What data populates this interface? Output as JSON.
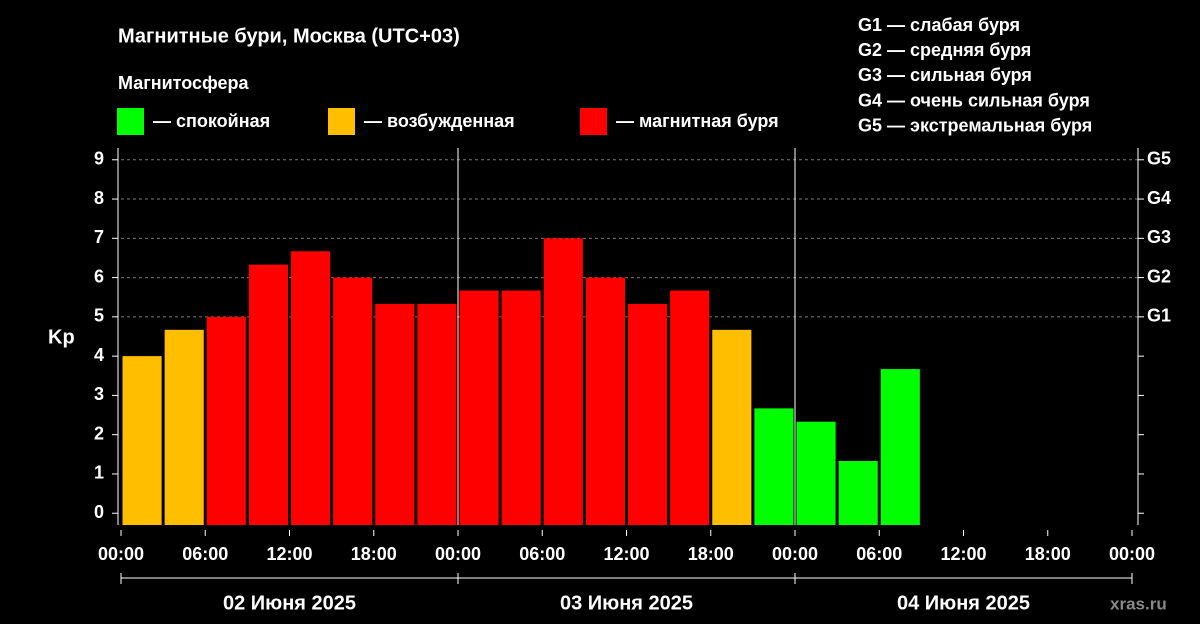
{
  "chart_data": {
    "type": "bar",
    "title": "Магнитные бури, Москва (UTC+03)",
    "legend_title": "Магнитосфера",
    "y_label": "Kp",
    "watermark": "xras.ru",
    "x": [
      0,
      3,
      6,
      9,
      12,
      15,
      18,
      21,
      24,
      27,
      30,
      33,
      36,
      39,
      42,
      45,
      48,
      51,
      54
    ],
    "series": [
      {
        "name": "— спокойная",
        "color": "#00ff00",
        "values": [
          null,
          null,
          null,
          null,
          null,
          null,
          null,
          null,
          null,
          null,
          null,
          null,
          null,
          null,
          null,
          2.67,
          2.33,
          1.33,
          3.67
        ]
      },
      {
        "name": "— возбужденная",
        "color": "#ffbf00",
        "values": [
          4.0,
          4.67,
          null,
          null,
          null,
          null,
          null,
          null,
          null,
          null,
          null,
          null,
          null,
          null,
          4.67,
          null,
          null,
          null,
          null
        ]
      },
      {
        "name": "— магнитная буря",
        "color": "#ff0000",
        "values": [
          null,
          null,
          5.0,
          6.33,
          6.67,
          6.0,
          5.33,
          5.33,
          5.67,
          5.67,
          7.0,
          6.0,
          5.33,
          5.67,
          null,
          null,
          null,
          null,
          null
        ]
      }
    ],
    "xlim": [
      0,
      72
    ],
    "xticks": [
      {
        "value": 0,
        "label": "00:00"
      },
      {
        "value": 6,
        "label": "06:00"
      },
      {
        "value": 12,
        "label": "12:00"
      },
      {
        "value": 18,
        "label": "18:00"
      },
      {
        "value": 24,
        "label": "00:00"
      },
      {
        "value": 30,
        "label": "06:00"
      },
      {
        "value": 36,
        "label": "12:00"
      },
      {
        "value": 42,
        "label": "18:00"
      },
      {
        "value": 48,
        "label": "00:00"
      },
      {
        "value": 54,
        "label": "06:00"
      },
      {
        "value": 60,
        "label": "12:00"
      },
      {
        "value": 66,
        "label": "18:00"
      },
      {
        "value": 72,
        "label": "00:00"
      }
    ],
    "days": [
      {
        "label": "02 Июня 2025",
        "start": 0,
        "end": 24
      },
      {
        "label": "03 Июня 2025",
        "start": 24,
        "end": 48
      },
      {
        "label": "04 Июня 2025",
        "start": 48,
        "end": 72
      }
    ],
    "ylim": [
      -0.3,
      9.3
    ],
    "yticks": [
      0,
      1,
      2,
      3,
      4,
      5,
      6,
      7,
      8,
      9
    ],
    "gticks": [
      {
        "value": 5,
        "label": "G1"
      },
      {
        "value": 6,
        "label": "G2"
      },
      {
        "value": 7,
        "label": "G3"
      },
      {
        "value": 8,
        "label": "G4"
      },
      {
        "value": 9,
        "label": "G5"
      }
    ],
    "g_legend": [
      "G1 — слабая буря",
      "G2 — средняя буря",
      "G3 — сильная буря",
      "G4 — очень сильная буря",
      "G5 — экстремальная буря"
    ],
    "grid": true
  }
}
